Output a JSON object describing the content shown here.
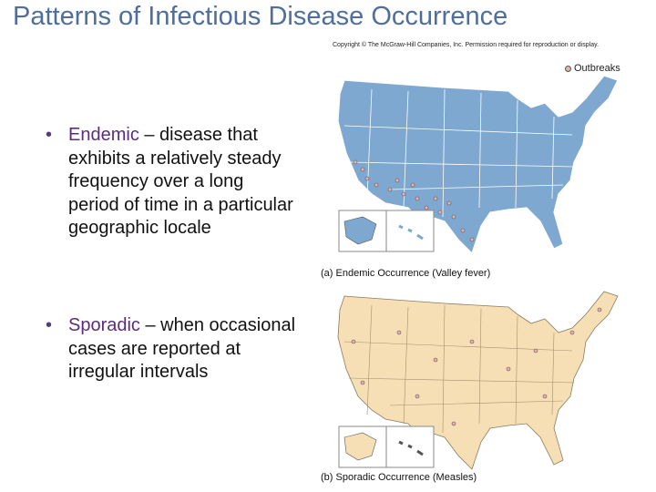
{
  "title": "Patterns of Infectious Disease Occurrence",
  "copyright": "Copyright © The McGraw-Hill Companies, Inc. Permission required for reproduction or display.",
  "legend": "Outbreaks",
  "bullets": [
    {
      "term": "Endemic",
      "text": "– disease that exhibits a relatively steady frequency over a long period of time in a particular geographic locale"
    },
    {
      "term": "Sporadic",
      "text": "– when occasional cases are reported at irregular intervals"
    }
  ],
  "maps": [
    {
      "label": "(a)",
      "caption": "Endemic Occurrence (Valley fever)"
    },
    {
      "label": "(b)",
      "caption": "Sporadic Occurrence (Measles)"
    }
  ]
}
